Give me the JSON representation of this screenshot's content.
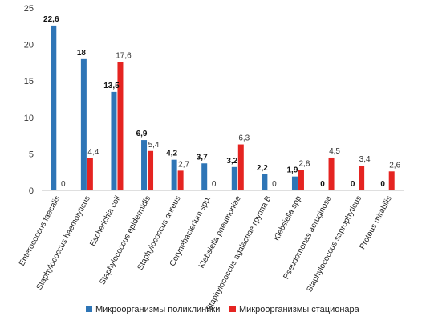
{
  "chart_data": {
    "type": "bar",
    "categories": [
      "Enterococcus faecalis",
      "Staphylococcus haemolyticus",
      "Escherichia coli",
      "Staphylococcus epidermidis",
      "Staphylococcus aureus",
      "Corynebacterium spp.",
      "Klebsiella pneumoniae",
      "Staphylococcus agalactiae группа B",
      "Klebsiella spp",
      "Pseudomonas aeruginosa",
      "Staphylococcus saprophyticus",
      "Proteus mirabilis"
    ],
    "series": [
      {
        "name": "Микроорганизмы поликлиники",
        "color": "#2E75B6",
        "values": [
          22.6,
          18,
          13.5,
          6.9,
          4.2,
          3.7,
          3.2,
          2.2,
          1.9,
          0,
          0,
          0
        ],
        "labels": [
          "22,6",
          "18",
          "13,5",
          "6,9",
          "4,2",
          "3,7",
          "3,2",
          "2,2",
          "1,9",
          "0",
          "0",
          "0"
        ]
      },
      {
        "name": "Микроорганизмы стационара",
        "color": "#E52421",
        "values": [
          0,
          4.4,
          17.6,
          5.4,
          2.7,
          0,
          6.3,
          0,
          2.8,
          4.5,
          3.4,
          2.6
        ],
        "labels": [
          "0",
          "4,4",
          "17,6",
          "5,4",
          "2,7",
          "0",
          "6,3",
          "0",
          "2,8",
          "4,5",
          "3,4",
          "2,6"
        ]
      }
    ],
    "y_ticks": [
      "0",
      "5",
      "10",
      "15",
      "20",
      "25"
    ],
    "ylim": [
      0,
      25
    ],
    "grid": false,
    "legend_position": "bottom"
  }
}
